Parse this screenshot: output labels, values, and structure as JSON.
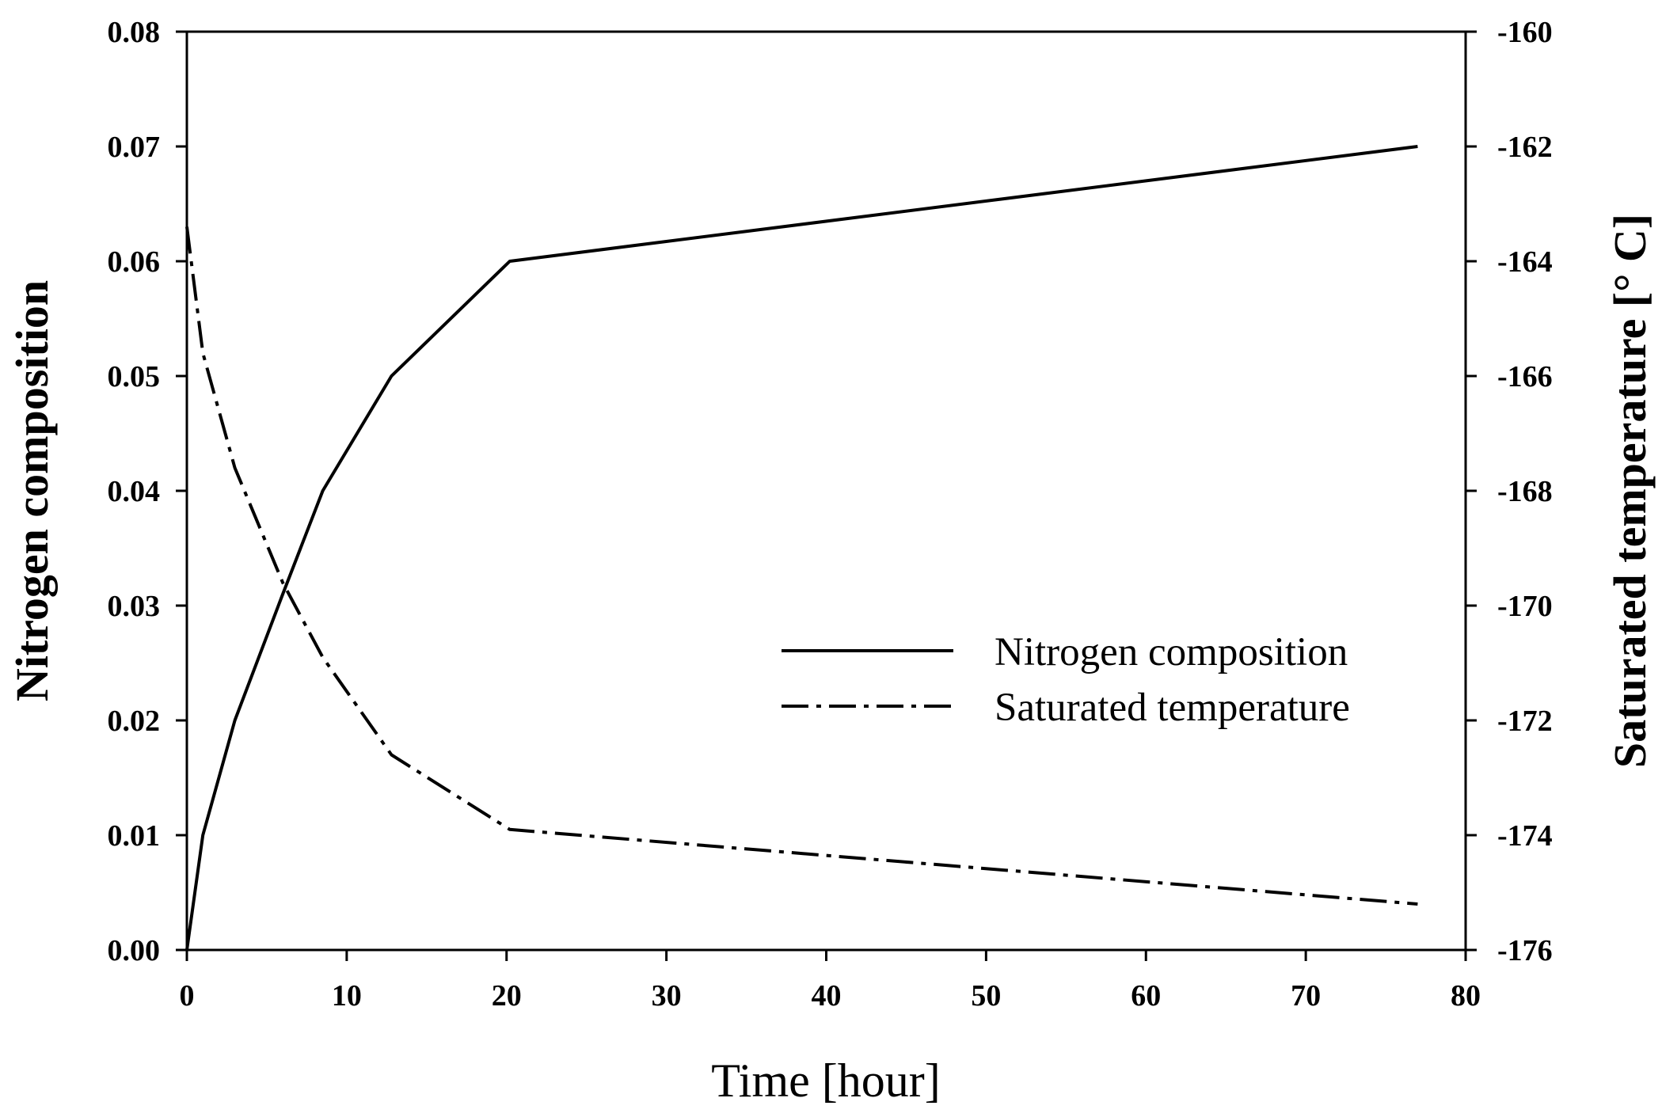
{
  "chart_data": {
    "type": "line",
    "title": "",
    "xlabel": "Time [hour]",
    "ylabel": "Nitrogen composition",
    "y2label": "Saturated temperature [° C]",
    "xlim": [
      0,
      80
    ],
    "ylim": [
      0.0,
      0.08
    ],
    "y2lim": [
      -176,
      -160
    ],
    "x_ticks": [
      "0",
      "10",
      "20",
      "30",
      "40",
      "50",
      "60",
      "70",
      "80"
    ],
    "y_ticks": [
      "0.00",
      "0.01",
      "0.02",
      "0.03",
      "0.04",
      "0.05",
      "0.06",
      "0.07",
      "0.08"
    ],
    "y2_ticks": [
      "-176",
      "-174",
      "-172",
      "-170",
      "-168",
      "-166",
      "-164",
      "-162",
      "-160"
    ],
    "grid": false,
    "legend_position": "center-right",
    "series": [
      {
        "name": "Nitrogen composition",
        "axis": "left",
        "style": "solid",
        "x": [
          0,
          1,
          3,
          6,
          8.5,
          12.8,
          20.2,
          77
        ],
        "y": [
          0.0,
          0.01,
          0.02,
          0.031,
          0.04,
          0.05,
          0.06,
          0.07
        ]
      },
      {
        "name": "Saturated temperature",
        "axis": "right",
        "style": "dash-dot",
        "x": [
          0,
          1,
          3,
          6,
          8.5,
          12.8,
          20.2,
          77
        ],
        "y": [
          -163.4,
          -165.6,
          -167.6,
          -169.6,
          -170.9,
          -172.6,
          -173.9,
          -175.2
        ]
      }
    ]
  }
}
